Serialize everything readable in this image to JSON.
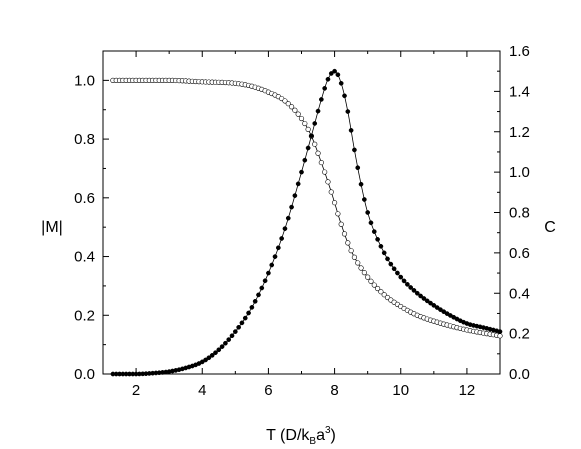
{
  "chart_data": {
    "type": "scatter",
    "xlabel": {
      "main": "T (D/k",
      "sub": "B",
      "mid": "a",
      "sup": "3",
      "end": ")"
    },
    "ylabel_left": "|M|",
    "ylabel_right": "C",
    "xlim": [
      1.0,
      13.0
    ],
    "ylim_left": [
      0.0,
      1.1
    ],
    "ylim_right": [
      0.0,
      1.6
    ],
    "x_ticks": [
      "2",
      "4",
      "6",
      "8",
      "10",
      "12"
    ],
    "y_left_ticks": [
      "0.0",
      "0.2",
      "0.4",
      "0.6",
      "0.8",
      "1.0"
    ],
    "y_right_ticks": [
      "0.0",
      "0.2",
      "0.4",
      "0.6",
      "0.8",
      "1.0",
      "1.2",
      "1.4",
      "1.6"
    ],
    "grid": false,
    "legend": "none",
    "series": [
      {
        "axis": "left",
        "marker": "open-circle",
        "x": [
          1.3,
          2.0,
          3.0,
          4.0,
          5.0,
          5.5,
          6.0,
          6.5,
          7.0,
          7.3,
          7.6,
          7.9,
          8.2,
          8.5,
          9.0,
          9.5,
          10.0,
          10.5,
          11.0,
          12.0,
          13.0
        ],
        "y": [
          1.0,
          1.0,
          1.0,
          0.995,
          0.99,
          0.98,
          0.96,
          0.93,
          0.87,
          0.81,
          0.72,
          0.62,
          0.51,
          0.42,
          0.33,
          0.27,
          0.23,
          0.2,
          0.18,
          0.15,
          0.13
        ]
      },
      {
        "axis": "right",
        "marker": "filled-circle",
        "x": [
          1.3,
          2.0,
          2.5,
          3.0,
          3.5,
          4.0,
          4.5,
          5.0,
          5.5,
          6.0,
          6.5,
          7.0,
          7.3,
          7.6,
          7.8,
          8.0,
          8.2,
          8.4,
          8.6,
          8.8,
          9.0,
          9.5,
          10.0,
          10.5,
          11.0,
          11.5,
          12.0,
          12.5,
          13.0
        ],
        "y": [
          0.0,
          0.0,
          0.004,
          0.012,
          0.03,
          0.06,
          0.12,
          0.21,
          0.33,
          0.5,
          0.72,
          1.0,
          1.18,
          1.36,
          1.46,
          1.5,
          1.44,
          1.3,
          1.11,
          0.94,
          0.8,
          0.6,
          0.48,
          0.4,
          0.34,
          0.29,
          0.25,
          0.23,
          0.21
        ]
      }
    ]
  }
}
